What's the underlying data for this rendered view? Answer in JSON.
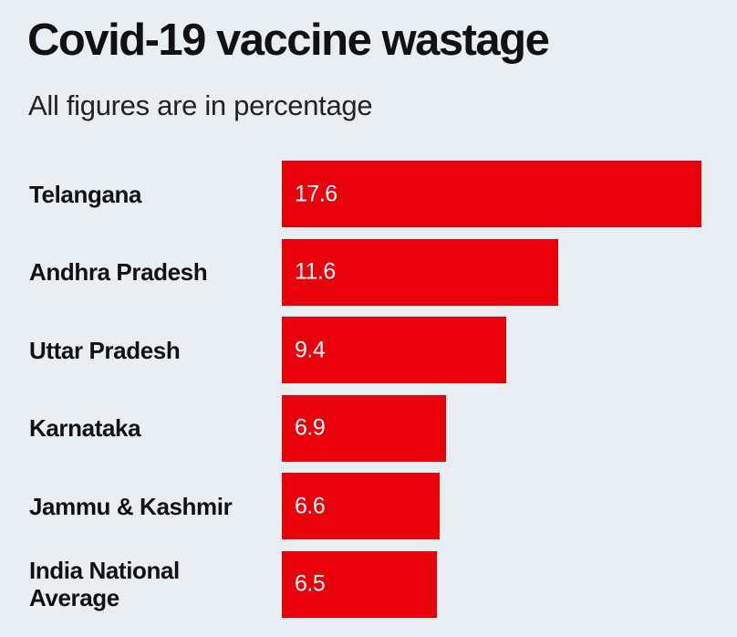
{
  "title": "Covid-19 vaccine wastage",
  "subtitle": "All figures are in percentage",
  "chart_data": {
    "type": "bar",
    "orientation": "horizontal",
    "title": "Covid-19 vaccine wastage",
    "subtitle": "All figures are in percentage",
    "categories": [
      "Telangana",
      "Andhra Pradesh",
      "Uttar Pradesh",
      "Karnataka",
      "Jammu & Kashmir",
      "India National Average"
    ],
    "values": [
      17.6,
      11.6,
      9.4,
      6.9,
      6.6,
      6.5
    ],
    "value_labels": [
      "17.6",
      "11.6",
      "9.4",
      "6.9",
      "6.6",
      "6.5"
    ],
    "bar_color": "#e8000b",
    "grid": false,
    "legend": "none"
  }
}
